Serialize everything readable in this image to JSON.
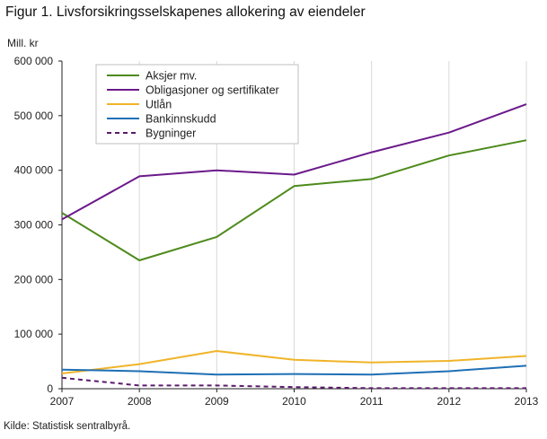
{
  "figure": {
    "title": "Figur 1. Livsforsikringsselskapenes allokering av eiendeler",
    "source": "Kilde: Statistisk sentralbyrå."
  },
  "chart_data": {
    "type": "line",
    "ylabel": "Mill. kr",
    "xlabel": "",
    "x": [
      "2007",
      "2008",
      "2009",
      "2010",
      "2011",
      "2012",
      "2013"
    ],
    "ylim": [
      0,
      600000
    ],
    "yticks": [
      0,
      100000,
      200000,
      300000,
      400000,
      500000,
      600000
    ],
    "ytick_labels": [
      "0",
      "100 000",
      "200 000",
      "300 000",
      "400 000",
      "500 000",
      "600 000"
    ],
    "grid": "vertical",
    "legend_position": "top-left",
    "series": [
      {
        "name": "Aksjer mv.",
        "color": "#4d8a1b",
        "dash": "solid",
        "values": [
          322000,
          235000,
          278000,
          371000,
          384000,
          427000,
          455000
        ]
      },
      {
        "name": "Obligasjoner og sertifikater",
        "color": "#6b1a8a",
        "dash": "solid",
        "values": [
          310000,
          389000,
          400000,
          392000,
          433000,
          469000,
          521000
        ]
      },
      {
        "name": "Utlån",
        "color": "#f0b429",
        "dash": "solid",
        "values": [
          28000,
          45000,
          69000,
          53000,
          48000,
          51000,
          60000
        ]
      },
      {
        "name": "Bankinnskudd",
        "color": "#1f6fb5",
        "dash": "solid",
        "values": [
          35000,
          32000,
          26000,
          27000,
          26000,
          32000,
          42000
        ]
      },
      {
        "name": "Bygninger",
        "color": "#5a1a6b",
        "dash": "dashed",
        "values": [
          20000,
          6000,
          6000,
          3000,
          1000,
          1000,
          1000
        ]
      }
    ]
  }
}
